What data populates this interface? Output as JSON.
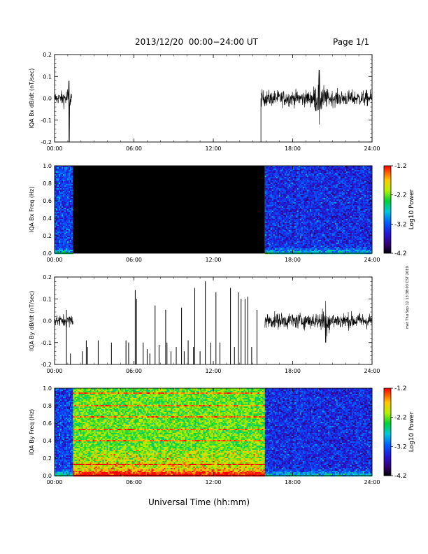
{
  "header": {
    "title": "2013/12/20  00:00−24:00 UT",
    "page": "Page 1/1"
  },
  "side_stamp": "met Thu Sep 12 13:38:03 CST 2019",
  "chart_data": [
    {
      "type": "line",
      "ylabel": "IQA Bx dB/dt (nT/sec)",
      "xlim": [
        0,
        24
      ],
      "ylim": [
        -0.2,
        0.2
      ],
      "yticks": [
        "-0.2",
        "-0.1",
        "0.0",
        "0.1",
        "0.2"
      ],
      "xticks": [
        "00:00",
        "06:00",
        "12:00",
        "18:00",
        "24:00"
      ],
      "series_segments": [
        {
          "x_start": 0.0,
          "x_end": 1.3,
          "mean": 0.0,
          "amp": 0.03,
          "bursts": [
            {
              "x": 1.1,
              "min": -0.2,
              "max": 0.08
            }
          ]
        },
        {
          "x_start": 15.6,
          "x_end": 24.0,
          "mean": 0.0,
          "amp": 0.04,
          "bursts": [
            {
              "x": 20.0,
              "min": -0.12,
              "max": 0.13
            }
          ]
        }
      ],
      "gap_marker_x": 15.6
    },
    {
      "type": "heatmap",
      "ylabel": "IQA Bx Freq (Hz)",
      "xlim": [
        0,
        24
      ],
      "ylim": [
        0.0,
        1.0
      ],
      "yticks": [
        "0.0",
        "0.2",
        "0.4",
        "0.6",
        "0.8",
        "1.0"
      ],
      "xticks": [
        "00:00",
        "06:00",
        "12:00",
        "18:00",
        "24:00"
      ],
      "colorbar": {
        "label": "Log10 Power",
        "min": -4.2,
        "max": -1.2,
        "ticks": [
          "-1.2",
          "-2.2",
          "-3.2",
          "-4.2"
        ]
      },
      "regions": [
        {
          "x_start": 0.0,
          "x_end": 1.4,
          "level": -3.3,
          "fill": "data"
        },
        {
          "x_start": 1.4,
          "x_end": 15.9,
          "fill": "black"
        },
        {
          "x_start": 15.9,
          "x_end": 24.0,
          "level": -3.4,
          "fill": "data"
        }
      ]
    },
    {
      "type": "line",
      "ylabel": "IQA By dB/dt (nT/sec)",
      "xlim": [
        0,
        24
      ],
      "ylim": [
        -0.2,
        0.2
      ],
      "yticks": [
        "-0.2",
        "-0.1",
        "0.0",
        "0.1",
        "0.2"
      ],
      "xticks": [
        "00:00",
        "06:00",
        "12:00",
        "18:00",
        "24:00"
      ],
      "series_segments": [
        {
          "x_start": 0.0,
          "x_end": 1.4,
          "mean": 0.0,
          "amp": 0.03,
          "bursts": []
        },
        {
          "x_start": 15.9,
          "x_end": 24.0,
          "mean": 0.0,
          "amp": 0.04,
          "bursts": [
            {
              "x": 20.5,
              "min": -0.1,
              "max": 0.09
            }
          ]
        }
      ],
      "spikes": [
        {
          "x": 0.9,
          "y": 0.05
        },
        {
          "x": 1.2,
          "y": -0.15
        },
        {
          "x": 2.1,
          "y": -0.14
        },
        {
          "x": 2.4,
          "y": -0.09
        },
        {
          "x": 2.5,
          "y": -0.12
        },
        {
          "x": 3.3,
          "y": -0.09
        },
        {
          "x": 4.3,
          "y": -0.1
        },
        {
          "x": 5.4,
          "y": -0.09
        },
        {
          "x": 5.6,
          "y": -0.1
        },
        {
          "x": 6.1,
          "y": 0.14
        },
        {
          "x": 6.2,
          "y": 0.1
        },
        {
          "x": 6.7,
          "y": -0.1
        },
        {
          "x": 7.0,
          "y": -0.13
        },
        {
          "x": 7.2,
          "y": -0.15
        },
        {
          "x": 7.6,
          "y": 0.07
        },
        {
          "x": 7.9,
          "y": -0.11
        },
        {
          "x": 8.4,
          "y": 0.05
        },
        {
          "x": 8.5,
          "y": -0.1
        },
        {
          "x": 8.8,
          "y": -0.14
        },
        {
          "x": 9.2,
          "y": -0.12
        },
        {
          "x": 9.6,
          "y": 0.06
        },
        {
          "x": 9.8,
          "y": -0.14
        },
        {
          "x": 10.1,
          "y": -0.09
        },
        {
          "x": 10.5,
          "y": -0.12
        },
        {
          "x": 10.6,
          "y": 0.15
        },
        {
          "x": 11.0,
          "y": -0.14
        },
        {
          "x": 11.4,
          "y": 0.18
        },
        {
          "x": 11.8,
          "y": -0.1
        },
        {
          "x": 12.2,
          "y": 0.13
        },
        {
          "x": 12.5,
          "y": -0.1
        },
        {
          "x": 13.3,
          "y": 0.15
        },
        {
          "x": 13.6,
          "y": -0.12
        },
        {
          "x": 13.9,
          "y": 0.13
        },
        {
          "x": 14.1,
          "y": 0.1
        },
        {
          "x": 14.4,
          "y": 0.1
        },
        {
          "x": 14.6,
          "y": 0.11
        },
        {
          "x": 14.9,
          "y": -0.12
        },
        {
          "x": 15.3,
          "y": 0.05
        }
      ]
    },
    {
      "type": "heatmap",
      "ylabel": "IQA By Freq (Hz)",
      "xlabel": "Universal Time (hh:mm)",
      "xlim": [
        0,
        24
      ],
      "ylim": [
        0.0,
        1.0
      ],
      "yticks": [
        "0.0",
        "0.2",
        "0.4",
        "0.6",
        "0.8",
        "1.0"
      ],
      "xticks": [
        "00:00",
        "06:00",
        "12:00",
        "18:00",
        "24:00"
      ],
      "colorbar": {
        "label": "Log10 Power",
        "min": -4.2,
        "max": -1.2,
        "ticks": [
          "-1.2",
          "-2.2",
          "-3.2",
          "-4.2"
        ]
      },
      "regions": [
        {
          "x_start": 0.0,
          "x_end": 1.4,
          "level": -3.3,
          "fill": "data"
        },
        {
          "x_start": 1.4,
          "x_end": 15.9,
          "level": -2.2,
          "fill": "data",
          "harmonic_lines_hz": [
            0.14,
            0.27,
            0.41,
            0.54,
            0.68,
            0.81,
            0.95
          ]
        },
        {
          "x_start": 15.9,
          "x_end": 24.0,
          "level": -3.4,
          "fill": "data"
        }
      ]
    }
  ]
}
